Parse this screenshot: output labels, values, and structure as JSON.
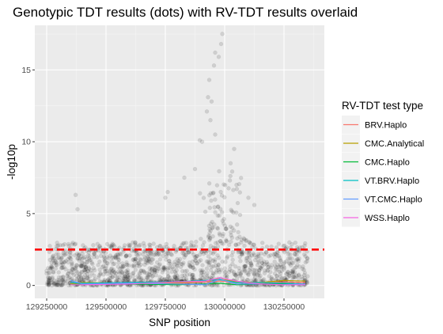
{
  "chart_data": {
    "type": "scatter",
    "title": "Genotypic TDT results (dots) with RV-TDT results overlaid",
    "xlabel": "SNP position",
    "ylabel": "-log10p",
    "xlim": [
      129200000,
      130420000
    ],
    "ylim": [
      -0.9,
      18.1
    ],
    "x_ticks": [
      129250000,
      129500000,
      129750000,
      130000000,
      130250000
    ],
    "x_tick_labels": [
      "129250000",
      "129500000",
      "129750000",
      "130000000",
      "130250000"
    ],
    "y_ticks": [
      0,
      5,
      10,
      15
    ],
    "y_tick_labels": [
      "0",
      "5",
      "10",
      "15"
    ],
    "grid": true,
    "threshold_line": {
      "y": 2.5,
      "color": "#ff0000",
      "style": "dashed"
    },
    "points": {
      "description_color": "#000000",
      "alpha": 0.12,
      "x_range": [
        129250000,
        130350000
      ],
      "y_max": 17.5,
      "peak_x": 129985000,
      "highlight": [
        [
          129990000,
          17.5
        ],
        [
          129985000,
          16.8
        ],
        [
          129960000,
          16.2
        ],
        [
          129975000,
          15.9
        ],
        [
          129955000,
          15.3
        ],
        [
          129935000,
          14.3
        ],
        [
          129930000,
          13.1
        ],
        [
          129945000,
          12.8
        ],
        [
          129925000,
          12.1
        ],
        [
          129940000,
          11.5
        ],
        [
          129895000,
          10.1
        ],
        [
          129905000,
          10.0
        ],
        [
          129760000,
          6.5
        ],
        [
          129750000,
          6.1
        ],
        [
          129372000,
          6.3
        ],
        [
          129380000,
          5.3
        ],
        [
          130025000,
          8.5
        ],
        [
          130050000,
          7.0
        ],
        [
          129830000,
          7.5
        ],
        [
          130100000,
          6.1
        ],
        [
          130125000,
          5.6
        ],
        [
          130040000,
          9.5
        ],
        [
          129960000,
          10.5
        ],
        [
          129875000,
          8.1
        ]
      ]
    },
    "series": [
      {
        "name": "BRV.Haplo",
        "color": "#f8766d",
        "x": [
          129350000,
          129400000,
          129600000,
          129800000,
          129920000,
          129980000,
          130050000,
          130150000,
          130250000,
          130340000
        ],
        "values": [
          0.15,
          0.1,
          0.2,
          0.15,
          0.25,
          0.3,
          0.2,
          0.15,
          0.25,
          0.2
        ]
      },
      {
        "name": "CMC.Analytical",
        "color": "#b79f00",
        "x": [
          129350000,
          129400000,
          129600000,
          129800000,
          129920000,
          129980000,
          130050000,
          130150000,
          130250000,
          130340000
        ],
        "values": [
          0.1,
          0.2,
          0.15,
          0.2,
          0.3,
          0.45,
          0.25,
          0.2,
          0.35,
          0.3
        ]
      },
      {
        "name": "CMC.Haplo",
        "color": "#00ba38",
        "x": [
          129350000,
          129400000,
          129600000,
          129800000,
          129920000,
          129980000,
          130050000,
          130150000,
          130250000,
          130340000
        ],
        "values": [
          0.05,
          0.1,
          0.1,
          0.05,
          0.1,
          0.15,
          0.05,
          0.1,
          0.1,
          0.05
        ]
      },
      {
        "name": "VT.BRV.Haplo",
        "color": "#00bfc4",
        "x": [
          129350000,
          129400000,
          129600000,
          129800000,
          129920000,
          129980000,
          130050000,
          130150000,
          130250000,
          130340000
        ],
        "values": [
          0.2,
          0.15,
          0.2,
          0.25,
          0.35,
          0.4,
          0.2,
          0.2,
          0.15,
          0.1
        ]
      },
      {
        "name": "VT.CMC.Haplo",
        "color": "#619cff",
        "x": [
          129350000,
          129400000,
          129600000,
          129800000,
          129920000,
          129980000,
          130050000,
          130150000,
          130250000,
          130340000
        ],
        "values": [
          0.35,
          0.1,
          0.15,
          0.1,
          0.05,
          0.45,
          0.1,
          0.1,
          0.05,
          0.1
        ]
      },
      {
        "name": "WSS.Haplo",
        "color": "#f564e3",
        "x": [
          129350000,
          129400000,
          129600000,
          129800000,
          129920000,
          129980000,
          130050000,
          130150000,
          130250000,
          130340000
        ],
        "values": [
          0.05,
          0.05,
          0.1,
          0.25,
          0.3,
          0.55,
          0.3,
          0.1,
          0.05,
          0.05
        ]
      }
    ],
    "legend": {
      "title": "RV-TDT test type",
      "placement": "right"
    }
  }
}
